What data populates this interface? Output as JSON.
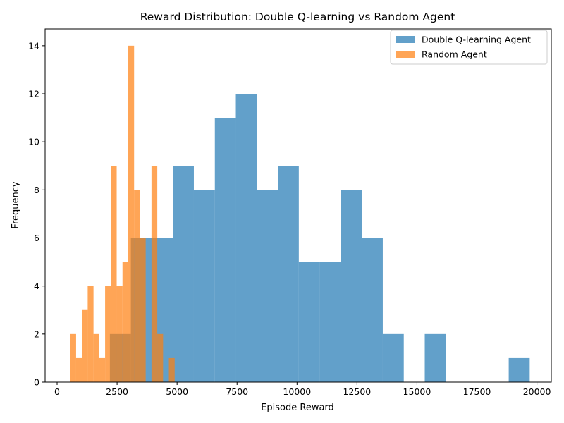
{
  "chart_data": {
    "type": "histogram",
    "title": "Reward Distribution: Double Q-learning vs Random Agent",
    "xlabel": "Episode Reward",
    "ylabel": "Frequency",
    "xlim": [
      -500,
      20600
    ],
    "ylim": [
      0,
      14.7
    ],
    "xticks": [
      0,
      2500,
      5000,
      7500,
      10000,
      12500,
      15000,
      17500,
      20000
    ],
    "xtick_labels": [
      "0",
      "2500",
      "5000",
      "7500",
      "10000",
      "12500",
      "15000",
      "17500",
      "20000"
    ],
    "yticks": [
      0,
      2,
      4,
      6,
      8,
      10,
      12,
      14
    ],
    "ytick_labels": [
      "0",
      "2",
      "4",
      "6",
      "8",
      "10",
      "12",
      "14"
    ],
    "legend_position": "top-right",
    "grid": false,
    "series": [
      {
        "name": "Double Q-learning Agent",
        "color": "#1f77b4",
        "opacity": 0.7,
        "bin_start": 2200,
        "bin_width": 875,
        "counts": [
          2,
          6,
          6,
          9,
          8,
          11,
          12,
          8,
          9,
          5,
          5,
          8,
          6,
          2,
          0,
          2,
          0,
          0,
          0,
          1
        ]
      },
      {
        "name": "Random Agent",
        "color": "#ff7f0e",
        "opacity": 0.7,
        "bin_start": 550,
        "bin_width": 241.7,
        "counts": [
          2,
          1,
          3,
          4,
          2,
          1,
          4,
          9,
          4,
          5,
          14,
          8,
          6,
          0,
          9,
          2,
          0,
          1
        ]
      }
    ]
  }
}
